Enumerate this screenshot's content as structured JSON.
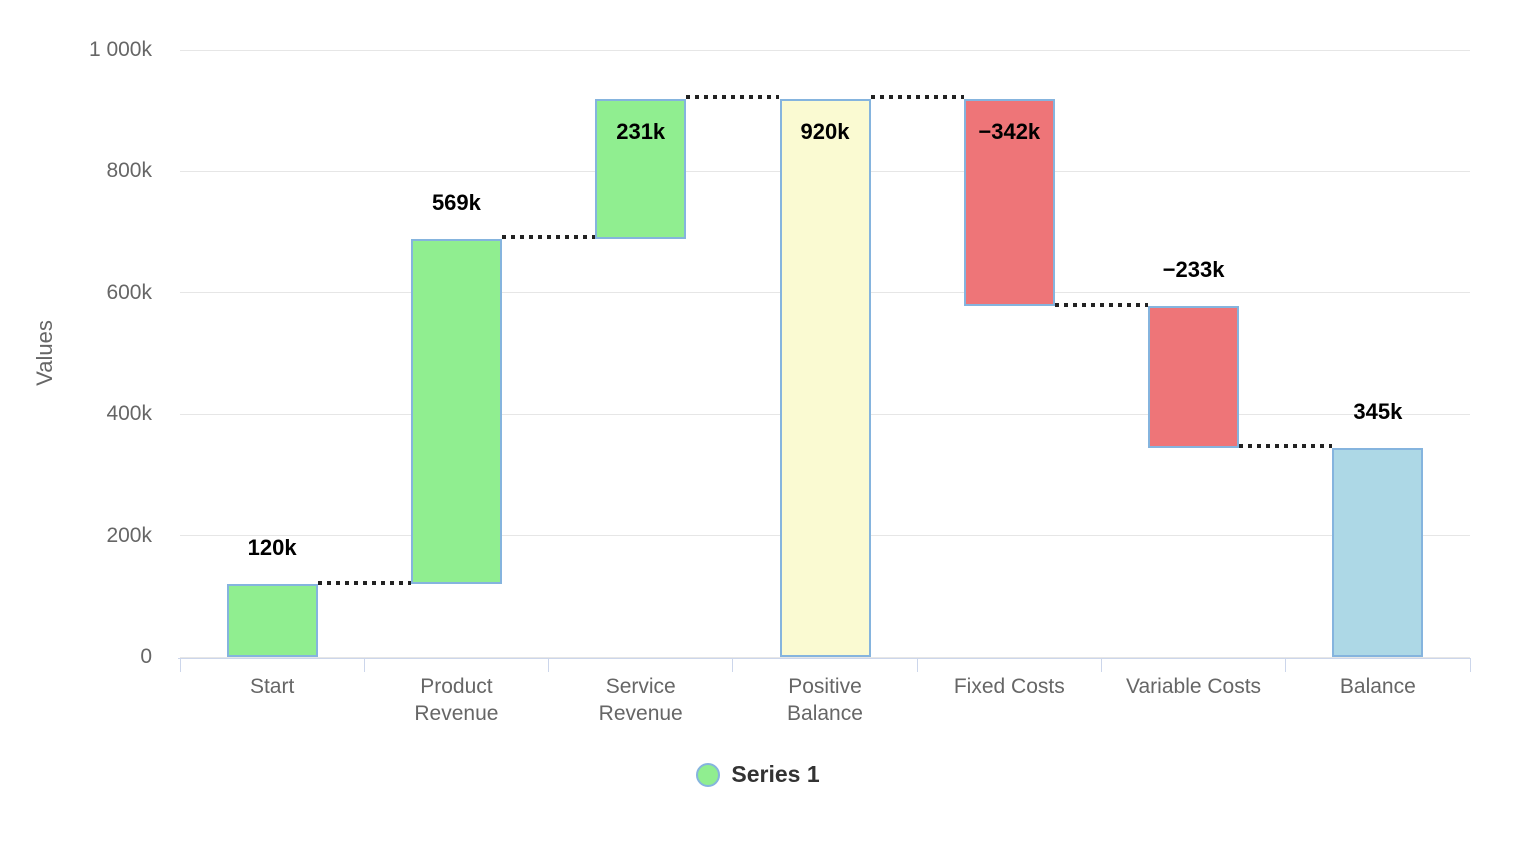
{
  "chart_data": {
    "type": "bar",
    "subtype": "waterfall",
    "title": "",
    "ylabel": "Values",
    "xlabel": "",
    "ylim_k": [
      0,
      1000
    ],
    "grid": "horizontal-only",
    "legend_position": "bottom-center",
    "yticks": [
      {
        "v": 0,
        "label": "0"
      },
      {
        "v": 200,
        "label": "200k"
      },
      {
        "v": 400,
        "label": "400k"
      },
      {
        "v": 600,
        "label": "600k"
      },
      {
        "v": 800,
        "label": "800k"
      },
      {
        "v": 1000,
        "label": "1 000k"
      }
    ],
    "categories": [
      "Start",
      "Product Revenue",
      "Service Revenue",
      "Positive Balance",
      "Fixed Costs",
      "Variable Costs",
      "Balance"
    ],
    "series": [
      {
        "name": "Series 1"
      }
    ],
    "points": [
      {
        "category": "Start",
        "wrapped": "Start",
        "value_k": 120,
        "label": "120k",
        "from": 0,
        "to": 120,
        "color": "positive",
        "label_placement": "above"
      },
      {
        "category": "Product Revenue",
        "wrapped": "Product\nRevenue",
        "value_k": 569,
        "label": "569k",
        "from": 120,
        "to": 689,
        "color": "positive",
        "label_placement": "above"
      },
      {
        "category": "Service Revenue",
        "wrapped": "Service\nRevenue",
        "value_k": 231,
        "label": "231k",
        "from": 689,
        "to": 920,
        "color": "positive",
        "label_placement": "inside"
      },
      {
        "category": "Positive Balance",
        "wrapped": "Positive\nBalance",
        "value_k": 920,
        "label": "920k",
        "from": 0,
        "to": 920,
        "color": "sum",
        "label_placement": "inside"
      },
      {
        "category": "Fixed Costs",
        "wrapped": "Fixed Costs",
        "value_k": -342,
        "label": "−342k",
        "from": 920,
        "to": 578,
        "color": "negative",
        "label_placement": "inside"
      },
      {
        "category": "Variable Costs",
        "wrapped": "Variable Costs",
        "value_k": -233,
        "label": "−233k",
        "from": 578,
        "to": 345,
        "color": "negative",
        "label_placement": "above"
      },
      {
        "category": "Balance",
        "wrapped": "Balance",
        "value_k": 345,
        "label": "345k",
        "from": 0,
        "to": 345,
        "color": "balance",
        "label_placement": "above"
      }
    ],
    "colors": {
      "positive": "#90ee90",
      "negative": "#ee7578",
      "sum": "#fafad2",
      "balance": "#add8e6",
      "bar_border": "#85b4de",
      "connector": "#222222",
      "gridline": "#e6e6e6",
      "axis_line": "#ccd6eb",
      "axis_text": "#666666",
      "label_text": "#000000",
      "legend_text": "#333333"
    },
    "legend": {
      "label": "Series 1",
      "marker_color": "#90ee90",
      "marker_border": "#85b4de"
    }
  }
}
